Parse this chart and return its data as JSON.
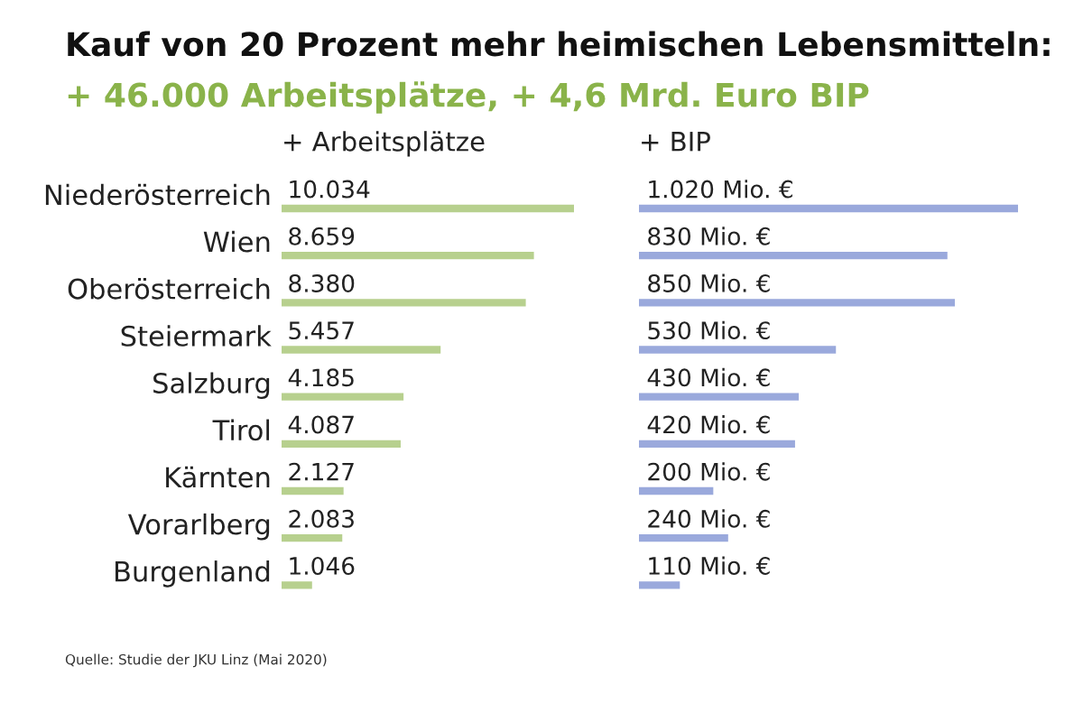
{
  "chart_data": [
    {
      "type": "bar",
      "orientation": "horizontal",
      "title": "Kauf von 20 Prozent mehr heimischen Lebensmitteln:",
      "subtitle": "+ 46.000 Arbeitsplätze, + 4,6 Mrd. Euro BIP",
      "xlabel": "+ Arbeitsplätze",
      "categories": [
        "Niederösterreich",
        "Wien",
        "Oberösterreich",
        "Steiermark",
        "Salzburg",
        "Tirol",
        "Kärnten",
        "Vorarlberg",
        "Burgenland"
      ],
      "values": [
        10034,
        8659,
        8380,
        5457,
        4185,
        4087,
        2127,
        2083,
        1046
      ],
      "value_labels": [
        "10.034",
        "8.659",
        "8.380",
        "5.457",
        "4.185",
        "4.087",
        "2.127",
        "2.083",
        "1.046"
      ],
      "color": "#b7d08e",
      "tick_labels": "y",
      "annotations": [
        "Quelle: Studie der JKU Linz (Mai 2020)"
      ]
    },
    {
      "type": "bar",
      "orientation": "horizontal",
      "xlabel": "+ BIP",
      "categories": [
        null,
        null,
        null,
        null,
        null,
        null,
        null,
        null,
        null
      ],
      "values": [
        1020,
        830,
        850,
        530,
        430,
        420,
        200,
        240,
        110
      ],
      "value_labels": [
        "1.020 Mio. €",
        "830 Mio. €",
        "850 Mio. €",
        "530 Mio. €",
        "430 Mio. €",
        "420 Mio. €",
        "200 Mio. €",
        "240 Mio. €",
        "110 Mio. €"
      ],
      "color": "#9aa9dc",
      "tick_labels": false
    }
  ]
}
